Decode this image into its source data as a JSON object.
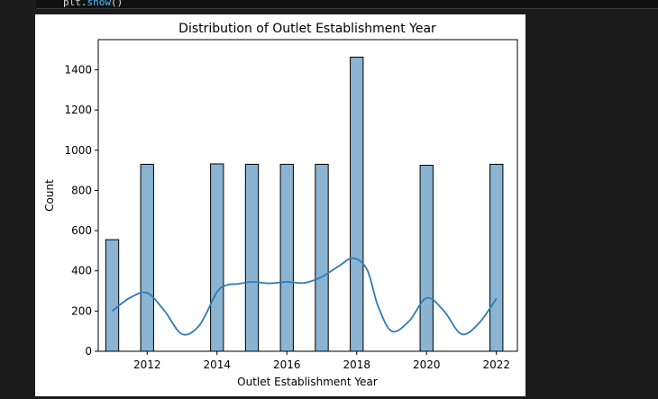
{
  "notebook": {
    "code_line_object": "plt.",
    "code_line_fn": "show",
    "code_line_tail": "()"
  },
  "chart_data": {
    "type": "bar",
    "title": "Distribution of Outlet Establishment Year",
    "xlabel": "Outlet Establishment Year",
    "ylabel": "Count",
    "xlim": [
      2010.6,
      2022.6
    ],
    "ylim": [
      0,
      1550
    ],
    "x_ticks": [
      2012,
      2014,
      2016,
      2018,
      2020,
      2022
    ],
    "y_ticks": [
      0,
      200,
      400,
      600,
      800,
      1000,
      1200,
      1400
    ],
    "bars": [
      {
        "year": 2011,
        "count": 555
      },
      {
        "year": 2012,
        "count": 930
      },
      {
        "year": 2014,
        "count": 932
      },
      {
        "year": 2015,
        "count": 930
      },
      {
        "year": 2016,
        "count": 930
      },
      {
        "year": 2017,
        "count": 930
      },
      {
        "year": 2018,
        "count": 1463
      },
      {
        "year": 2020,
        "count": 925
      },
      {
        "year": 2022,
        "count": 930
      }
    ],
    "kde": {
      "x": [
        2011.0,
        2011.5,
        2012.0,
        2012.5,
        2013.0,
        2013.5,
        2014.0,
        2014.3,
        2014.6,
        2015.0,
        2015.5,
        2016.0,
        2016.5,
        2017.0,
        2017.5,
        2017.9,
        2018.3,
        2018.6,
        2019.0,
        2019.5,
        2020.0,
        2020.5,
        2021.0,
        2021.5,
        2022.0
      ],
      "y": [
        200,
        265,
        290,
        200,
        85,
        130,
        295,
        330,
        335,
        345,
        338,
        345,
        340,
        370,
        425,
        463,
        405,
        230,
        100,
        150,
        265,
        200,
        85,
        140,
        262
      ]
    },
    "bar_color": "#8ab4d2",
    "line_color": "#2e7bb6",
    "grid": false,
    "legend": false
  }
}
